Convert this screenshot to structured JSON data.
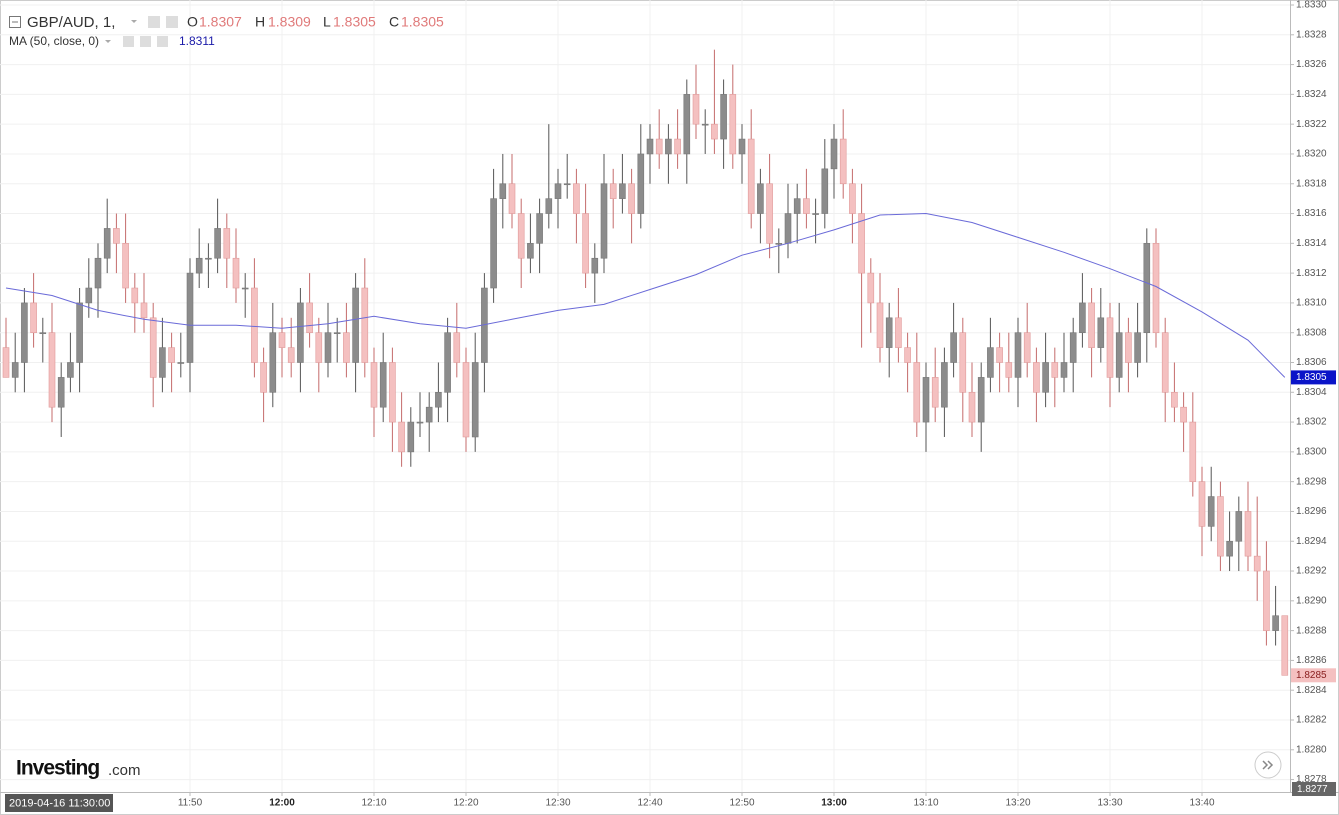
{
  "chart_data": {
    "type": "candlestick",
    "symbol": "GBP/AUD, 1,",
    "ohlc_labels": [
      "O",
      "H",
      "L",
      "C"
    ],
    "crosshair_time": "2019-04-16 11:30:00",
    "crosshair_price": "1.8277",
    "logo": {
      "main": "Investing",
      "suffix": ".com"
    },
    "up_color": "#8c8c8c",
    "down_color": "#f4c0c0",
    "x": [
      "11:30",
      "11:31",
      "11:32",
      "11:33",
      "11:34",
      "11:35",
      "11:36",
      "11:37",
      "11:38",
      "11:39",
      "11:40",
      "11:41",
      "11:42",
      "11:43",
      "11:44",
      "11:45",
      "11:46",
      "11:47",
      "11:48",
      "11:49",
      "11:50",
      "11:51",
      "11:52",
      "11:53",
      "11:54",
      "11:55",
      "11:56",
      "11:57",
      "11:58",
      "11:59",
      "12:00",
      "12:01",
      "12:02",
      "12:03",
      "12:04",
      "12:05",
      "12:06",
      "12:07",
      "12:08",
      "12:09",
      "12:10",
      "12:11",
      "12:12",
      "12:13",
      "12:14",
      "12:15",
      "12:16",
      "12:17",
      "12:18",
      "12:19",
      "12:20",
      "12:21",
      "12:22",
      "12:23",
      "12:24",
      "12:25",
      "12:26",
      "12:27",
      "12:28",
      "12:29",
      "12:30",
      "12:31",
      "12:32",
      "12:33",
      "12:34",
      "12:35",
      "12:36",
      "12:37",
      "12:38",
      "12:39",
      "12:40",
      "12:41",
      "12:42",
      "12:43",
      "12:44",
      "12:45",
      "12:46",
      "12:47",
      "12:48",
      "12:49",
      "12:50",
      "12:51",
      "12:52",
      "12:53",
      "12:54",
      "12:55",
      "12:56",
      "12:57",
      "12:58",
      "12:59",
      "13:00",
      "13:01",
      "13:02",
      "13:03",
      "13:04",
      "13:05",
      "13:06",
      "13:07",
      "13:08",
      "13:09",
      "13:10",
      "13:11",
      "13:12",
      "13:13",
      "13:14",
      "13:15",
      "13:16",
      "13:17",
      "13:18",
      "13:19",
      "13:20",
      "13:21",
      "13:22",
      "13:23",
      "13:24",
      "13:25",
      "13:26",
      "13:27",
      "13:28",
      "13:29",
      "13:30",
      "13:31",
      "13:32",
      "13:33",
      "13:34",
      "13:35",
      "13:36",
      "13:37",
      "13:38",
      "13:39",
      "13:40",
      "13:41",
      "13:42",
      "13:43",
      "13:44",
      "13:45",
      "13:46",
      "13:47",
      "13:48",
      "13:49"
    ],
    "open": [
      1.8307,
      1.8305,
      1.8306,
      1.831,
      1.8308,
      1.8308,
      1.8303,
      1.8305,
      1.8306,
      1.831,
      1.8311,
      1.8313,
      1.8315,
      1.8314,
      1.8311,
      1.831,
      1.8309,
      1.8305,
      1.8307,
      1.8306,
      1.8306,
      1.8312,
      1.8313,
      1.8313,
      1.8315,
      1.8313,
      1.8311,
      1.8311,
      1.8306,
      1.8304,
      1.8308,
      1.8307,
      1.8306,
      1.831,
      1.8308,
      1.8306,
      1.8308,
      1.8308,
      1.8306,
      1.8311,
      1.8306,
      1.8303,
      1.8306,
      1.8302,
      1.83,
      1.8302,
      1.8302,
      1.8303,
      1.8304,
      1.8308,
      1.8306,
      1.8301,
      1.8306,
      1.8311,
      1.8317,
      1.8318,
      1.8316,
      1.8313,
      1.8314,
      1.8316,
      1.8317,
      1.8318,
      1.8318,
      1.8316,
      1.8312,
      1.8313,
      1.8318,
      1.8317,
      1.8318,
      1.8316,
      1.832,
      1.8321,
      1.832,
      1.8321,
      1.832,
      1.8324,
      1.8322,
      1.8322,
      1.8321,
      1.8324,
      1.832,
      1.8321,
      1.8316,
      1.8318,
      1.8314,
      1.8314,
      1.8316,
      1.8317,
      1.8316,
      1.8316,
      1.8319,
      1.8321,
      1.8318,
      1.8316,
      1.8312,
      1.831,
      1.8307,
      1.8309,
      1.8307,
      1.8306,
      1.8302,
      1.8305,
      1.8303,
      1.8306,
      1.8308,
      1.8304,
      1.8302,
      1.8305,
      1.8307,
      1.8306,
      1.8305,
      1.8308,
      1.8306,
      1.8304,
      1.8306,
      1.8305,
      1.8306,
      1.8308,
      1.831,
      1.8307,
      1.8309,
      1.8305,
      1.8308,
      1.8306,
      1.8308,
      1.8314,
      1.8308,
      1.8304,
      1.8303,
      1.8302,
      1.8298,
      1.8295,
      1.8297,
      1.8293,
      1.8294,
      1.8296,
      1.8293,
      1.8292,
      1.8288,
      1.8289
    ],
    "high": [
      1.8309,
      1.8308,
      1.8311,
      1.8312,
      1.8309,
      1.831,
      1.8306,
      1.8308,
      1.8311,
      1.8313,
      1.8314,
      1.8317,
      1.8316,
      1.8316,
      1.8312,
      1.8312,
      1.831,
      1.8309,
      1.8308,
      1.8308,
      1.8313,
      1.8315,
      1.8314,
      1.8317,
      1.8316,
      1.8315,
      1.8312,
      1.8313,
      1.8307,
      1.831,
      1.8309,
      1.8309,
      1.8311,
      1.8312,
      1.8309,
      1.831,
      1.8309,
      1.831,
      1.8312,
      1.8313,
      1.8307,
      1.8308,
      1.8307,
      1.8304,
      1.8303,
      1.8304,
      1.8304,
      1.8306,
      1.8309,
      1.831,
      1.8307,
      1.8308,
      1.8312,
      1.8319,
      1.832,
      1.832,
      1.8317,
      1.8316,
      1.8317,
      1.8322,
      1.8319,
      1.832,
      1.8319,
      1.8318,
      1.8314,
      1.832,
      1.8319,
      1.832,
      1.8319,
      1.8322,
      1.8322,
      1.8323,
      1.8322,
      1.8323,
      1.8325,
      1.8326,
      1.8323,
      1.8327,
      1.8325,
      1.8326,
      1.8322,
      1.8323,
      1.8319,
      1.832,
      1.8315,
      1.8318,
      1.8318,
      1.8319,
      1.8317,
      1.8321,
      1.8322,
      1.8323,
      1.8319,
      1.8318,
      1.8313,
      1.8312,
      1.831,
      1.8311,
      1.8308,
      1.8308,
      1.8306,
      1.8307,
      1.8307,
      1.831,
      1.8309,
      1.8306,
      1.8306,
      1.8309,
      1.8308,
      1.8308,
      1.8309,
      1.831,
      1.8307,
      1.8308,
      1.8307,
      1.8308,
      1.8309,
      1.8312,
      1.8311,
      1.8311,
      1.831,
      1.831,
      1.8309,
      1.831,
      1.8315,
      1.8315,
      1.8309,
      1.8306,
      1.8304,
      1.8304,
      1.8299,
      1.8299,
      1.8298,
      1.8296,
      1.8297,
      1.8298,
      1.8297,
      1.8294,
      1.8291,
      1.8289
    ],
    "low": [
      1.8305,
      1.8304,
      1.8304,
      1.8307,
      1.8306,
      1.8302,
      1.8301,
      1.8304,
      1.8304,
      1.8309,
      1.8309,
      1.8312,
      1.8312,
      1.831,
      1.8308,
      1.8308,
      1.8303,
      1.8304,
      1.8304,
      1.8305,
      1.8304,
      1.8311,
      1.8311,
      1.8312,
      1.8311,
      1.831,
      1.8309,
      1.8305,
      1.8302,
      1.8303,
      1.8305,
      1.8305,
      1.8304,
      1.8307,
      1.8304,
      1.8305,
      1.8306,
      1.8305,
      1.8304,
      1.8305,
      1.8301,
      1.8302,
      1.83,
      1.8299,
      1.8299,
      1.8301,
      1.83,
      1.8302,
      1.8302,
      1.8305,
      1.83,
      1.83,
      1.8304,
      1.831,
      1.8315,
      1.8315,
      1.8311,
      1.8312,
      1.8312,
      1.8315,
      1.8315,
      1.8317,
      1.8314,
      1.8311,
      1.831,
      1.8312,
      1.8315,
      1.8316,
      1.8314,
      1.8315,
      1.8318,
      1.8319,
      1.8318,
      1.8319,
      1.8318,
      1.8321,
      1.832,
      1.832,
      1.8319,
      1.8319,
      1.8318,
      1.8315,
      1.8314,
      1.8313,
      1.8312,
      1.8313,
      1.8314,
      1.8315,
      1.8314,
      1.8315,
      1.8317,
      1.8317,
      1.8314,
      1.8307,
      1.8308,
      1.8306,
      1.8305,
      1.8306,
      1.8304,
      1.8301,
      1.83,
      1.8302,
      1.8301,
      1.8305,
      1.8302,
      1.8301,
      1.83,
      1.8304,
      1.8304,
      1.8304,
      1.8303,
      1.8305,
      1.8302,
      1.8303,
      1.8303,
      1.8304,
      1.8304,
      1.8307,
      1.8305,
      1.8306,
      1.8303,
      1.8304,
      1.8304,
      1.8305,
      1.8306,
      1.8307,
      1.8302,
      1.8302,
      1.83,
      1.8297,
      1.8293,
      1.8294,
      1.8292,
      1.8292,
      1.8292,
      1.8292,
      1.829,
      1.8287,
      1.8287,
      1.8285
    ],
    "close": [
      1.8305,
      1.8306,
      1.831,
      1.8308,
      1.8308,
      1.8303,
      1.8305,
      1.8306,
      1.831,
      1.8311,
      1.8313,
      1.8315,
      1.8314,
      1.8311,
      1.831,
      1.8309,
      1.8305,
      1.8307,
      1.8306,
      1.8306,
      1.8312,
      1.8313,
      1.8313,
      1.8315,
      1.8313,
      1.8311,
      1.8311,
      1.8306,
      1.8304,
      1.8308,
      1.8307,
      1.8306,
      1.831,
      1.8308,
      1.8306,
      1.8308,
      1.8308,
      1.8306,
      1.8311,
      1.8306,
      1.8303,
      1.8306,
      1.8302,
      1.83,
      1.8302,
      1.8302,
      1.8303,
      1.8304,
      1.8308,
      1.8306,
      1.8301,
      1.8306,
      1.8311,
      1.8317,
      1.8318,
      1.8316,
      1.8313,
      1.8314,
      1.8316,
      1.8317,
      1.8318,
      1.8318,
      1.8316,
      1.8312,
      1.8313,
      1.8318,
      1.8317,
      1.8318,
      1.8316,
      1.832,
      1.8321,
      1.832,
      1.8321,
      1.832,
      1.8324,
      1.8322,
      1.8322,
      1.8321,
      1.8324,
      1.832,
      1.8321,
      1.8316,
      1.8318,
      1.8314,
      1.8314,
      1.8316,
      1.8317,
      1.8316,
      1.8316,
      1.8319,
      1.8321,
      1.8318,
      1.8316,
      1.8312,
      1.831,
      1.8307,
      1.8309,
      1.8307,
      1.8306,
      1.8302,
      1.8305,
      1.8303,
      1.8306,
      1.8308,
      1.8304,
      1.8302,
      1.8305,
      1.8307,
      1.8306,
      1.8305,
      1.8308,
      1.8306,
      1.8304,
      1.8306,
      1.8305,
      1.8306,
      1.8308,
      1.831,
      1.8307,
      1.8309,
      1.8305,
      1.8308,
      1.8306,
      1.8308,
      1.8314,
      1.8308,
      1.8304,
      1.8303,
      1.8302,
      1.8298,
      1.8295,
      1.8297,
      1.8293,
      1.8294,
      1.8296,
      1.8293,
      1.8292,
      1.8288,
      1.8289,
      1.8285
    ],
    "ma": {
      "name": "MA (50, close, 0)",
      "color": "#6a6ad8",
      "x": [
        "11:30",
        "11:35",
        "11:40",
        "11:45",
        "11:50",
        "11:55",
        "12:00",
        "12:05",
        "12:10",
        "12:15",
        "12:20",
        "12:25",
        "12:30",
        "12:35",
        "12:40",
        "12:45",
        "12:50",
        "12:55",
        "13:00",
        "13:05",
        "13:10",
        "13:15",
        "13:20",
        "13:25",
        "13:30",
        "13:35",
        "13:40",
        "13:45",
        "13:49"
      ],
      "values": [
        1.8311,
        1.83105,
        1.83095,
        1.83089,
        1.83085,
        1.83085,
        1.83083,
        1.83086,
        1.83091,
        1.83086,
        1.83083,
        1.83089,
        1.83095,
        1.83099,
        1.83109,
        1.83119,
        1.83132,
        1.8314,
        1.83149,
        1.83159,
        1.8316,
        1.83154,
        1.83144,
        1.83134,
        1.83123,
        1.83111,
        1.83094,
        1.83075,
        1.8305
      ]
    },
    "ylim": [
      1.82773,
      1.833
    ],
    "yticks": [
      {
        "value": 1.8278,
        "label": "1.8278"
      },
      {
        "value": 1.828,
        "label": "1.8280"
      },
      {
        "value": 1.8282,
        "label": "1.8282"
      },
      {
        "value": 1.8284,
        "label": "1.8284"
      },
      {
        "value": 1.8286,
        "label": "1.8286"
      },
      {
        "value": 1.8288,
        "label": "1.8288"
      },
      {
        "value": 1.829,
        "label": "1.8290"
      },
      {
        "value": 1.8292,
        "label": "1.8292"
      },
      {
        "value": 1.8294,
        "label": "1.8294"
      },
      {
        "value": 1.8296,
        "label": "1.8296"
      },
      {
        "value": 1.8298,
        "label": "1.8298"
      },
      {
        "value": 1.83,
        "label": "1.8300"
      },
      {
        "value": 1.8302,
        "label": "1.8302"
      },
      {
        "value": 1.8304,
        "label": "1.8304"
      },
      {
        "value": 1.8306,
        "label": "1.8306"
      },
      {
        "value": 1.8308,
        "label": "1.8308"
      },
      {
        "value": 1.831,
        "label": "1.8310"
      },
      {
        "value": 1.8312,
        "label": "1.8312"
      },
      {
        "value": 1.8314,
        "label": "1.8314"
      },
      {
        "value": 1.8316,
        "label": "1.8316"
      },
      {
        "value": 1.8318,
        "label": "1.8318"
      },
      {
        "value": 1.832,
        "label": "1.8320"
      },
      {
        "value": 1.8322,
        "label": "1.8322"
      },
      {
        "value": 1.8324,
        "label": "1.8324"
      },
      {
        "value": 1.8326,
        "label": "1.8326"
      },
      {
        "value": 1.8328,
        "label": "1.8328"
      },
      {
        "value": 1.833,
        "label": "1.8330"
      }
    ],
    "xticks": [
      "11:50",
      "12:00",
      "12:10",
      "12:20",
      "12:30",
      "12:40",
      "12:50",
      "13:00",
      "13:10",
      "13:20",
      "13:30",
      "13:40"
    ],
    "grid": true
  }
}
